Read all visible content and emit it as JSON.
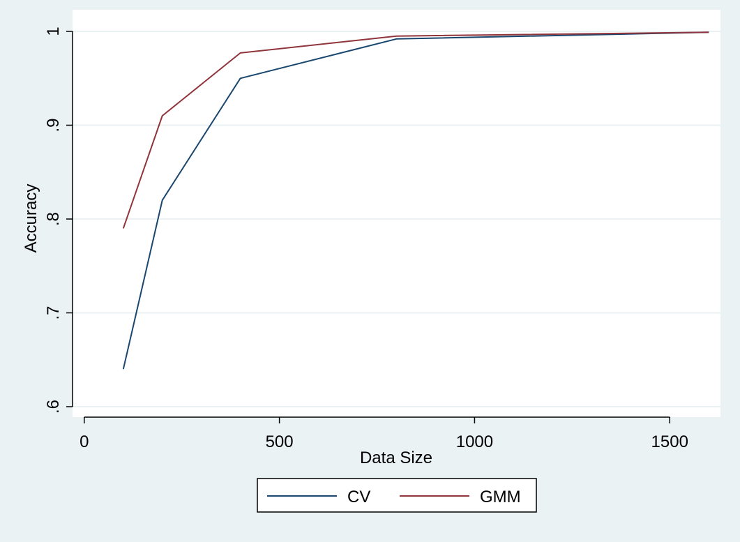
{
  "chart_data": {
    "type": "line",
    "title": "",
    "xlabel": "Data Size",
    "ylabel": "Accuracy",
    "xlim": [
      -30,
      1630
    ],
    "ylim": [
      0.59,
      1.0
    ],
    "xticks": [
      {
        "value": 0,
        "label": "0"
      },
      {
        "value": 500,
        "label": "500"
      },
      {
        "value": 1000,
        "label": "1000"
      },
      {
        "value": 1500,
        "label": "1500"
      }
    ],
    "yticks": [
      {
        "value": 0.6,
        "label": ".6"
      },
      {
        "value": 0.7,
        "label": ".7"
      },
      {
        "value": 0.8,
        "label": ".8"
      },
      {
        "value": 0.9,
        "label": ".9"
      },
      {
        "value": 1.0,
        "label": "1"
      }
    ],
    "grid": true,
    "legend_position": "bottom",
    "series": [
      {
        "name": "CV",
        "color": "#1a476f",
        "x": [
          100,
          200,
          400,
          800,
          1600
        ],
        "y": [
          0.64,
          0.82,
          0.95,
          0.992,
          0.999
        ]
      },
      {
        "name": "GMM",
        "color": "#90353b",
        "x": [
          100,
          200,
          400,
          800,
          1600
        ],
        "y": [
          0.79,
          0.91,
          0.977,
          0.995,
          0.999
        ]
      }
    ]
  }
}
